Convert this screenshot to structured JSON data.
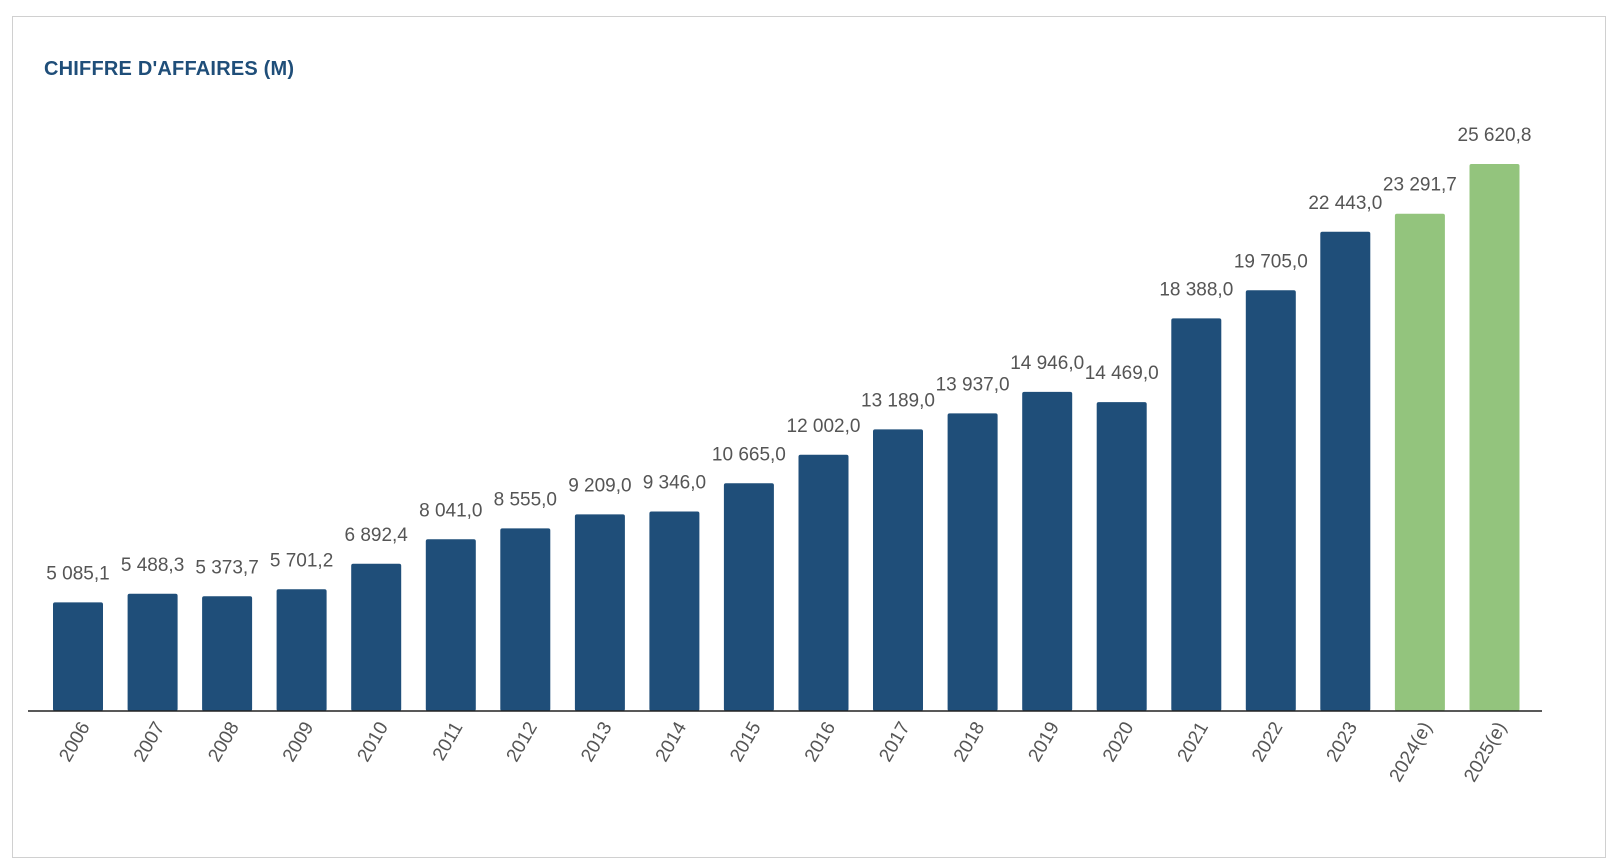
{
  "chart_data": {
    "type": "bar",
    "title": "CHIFFRE D'AFFAIRES (M)",
    "xlabel": "",
    "ylabel": "",
    "categories": [
      "2006",
      "2007",
      "2008",
      "2009",
      "2010",
      "2011",
      "2012",
      "2013",
      "2014",
      "2015",
      "2016",
      "2017",
      "2018",
      "2019",
      "2020",
      "2021",
      "2022",
      "2023",
      "2024(e)",
      "2025(e)"
    ],
    "values": [
      5085.1,
      5488.3,
      5373.7,
      5701.2,
      6892.4,
      8041.0,
      8555.0,
      9209.0,
      9346.0,
      10665.0,
      12002.0,
      13189.0,
      13937.0,
      14946.0,
      14469.0,
      18388.0,
      19705.0,
      22443.0,
      23291.7,
      25620.8
    ],
    "value_labels": [
      "5 085,1",
      "5 488,3",
      "5 373,7",
      "5 701,2",
      "6 892,4",
      "8 041,0",
      "8 555,0",
      "9 209,0",
      "9 346,0",
      "10 665,0",
      "12 002,0",
      "13 189,0",
      "13 937,0",
      "14 946,0",
      "14 469,0",
      "18 388,0",
      "19 705,0",
      "22 443,0",
      "23 291,7",
      "25 620,8"
    ],
    "estimated": [
      false,
      false,
      false,
      false,
      false,
      false,
      false,
      false,
      false,
      false,
      false,
      false,
      false,
      false,
      false,
      false,
      false,
      false,
      true,
      true
    ],
    "colors": {
      "actual": "#1f4e79",
      "estimate": "#93c47d",
      "title": "#1f4e79",
      "label": "#555555",
      "axis": "#222222"
    },
    "ylim": [
      0,
      25620.8
    ],
    "grid": false,
    "legend": "none"
  }
}
